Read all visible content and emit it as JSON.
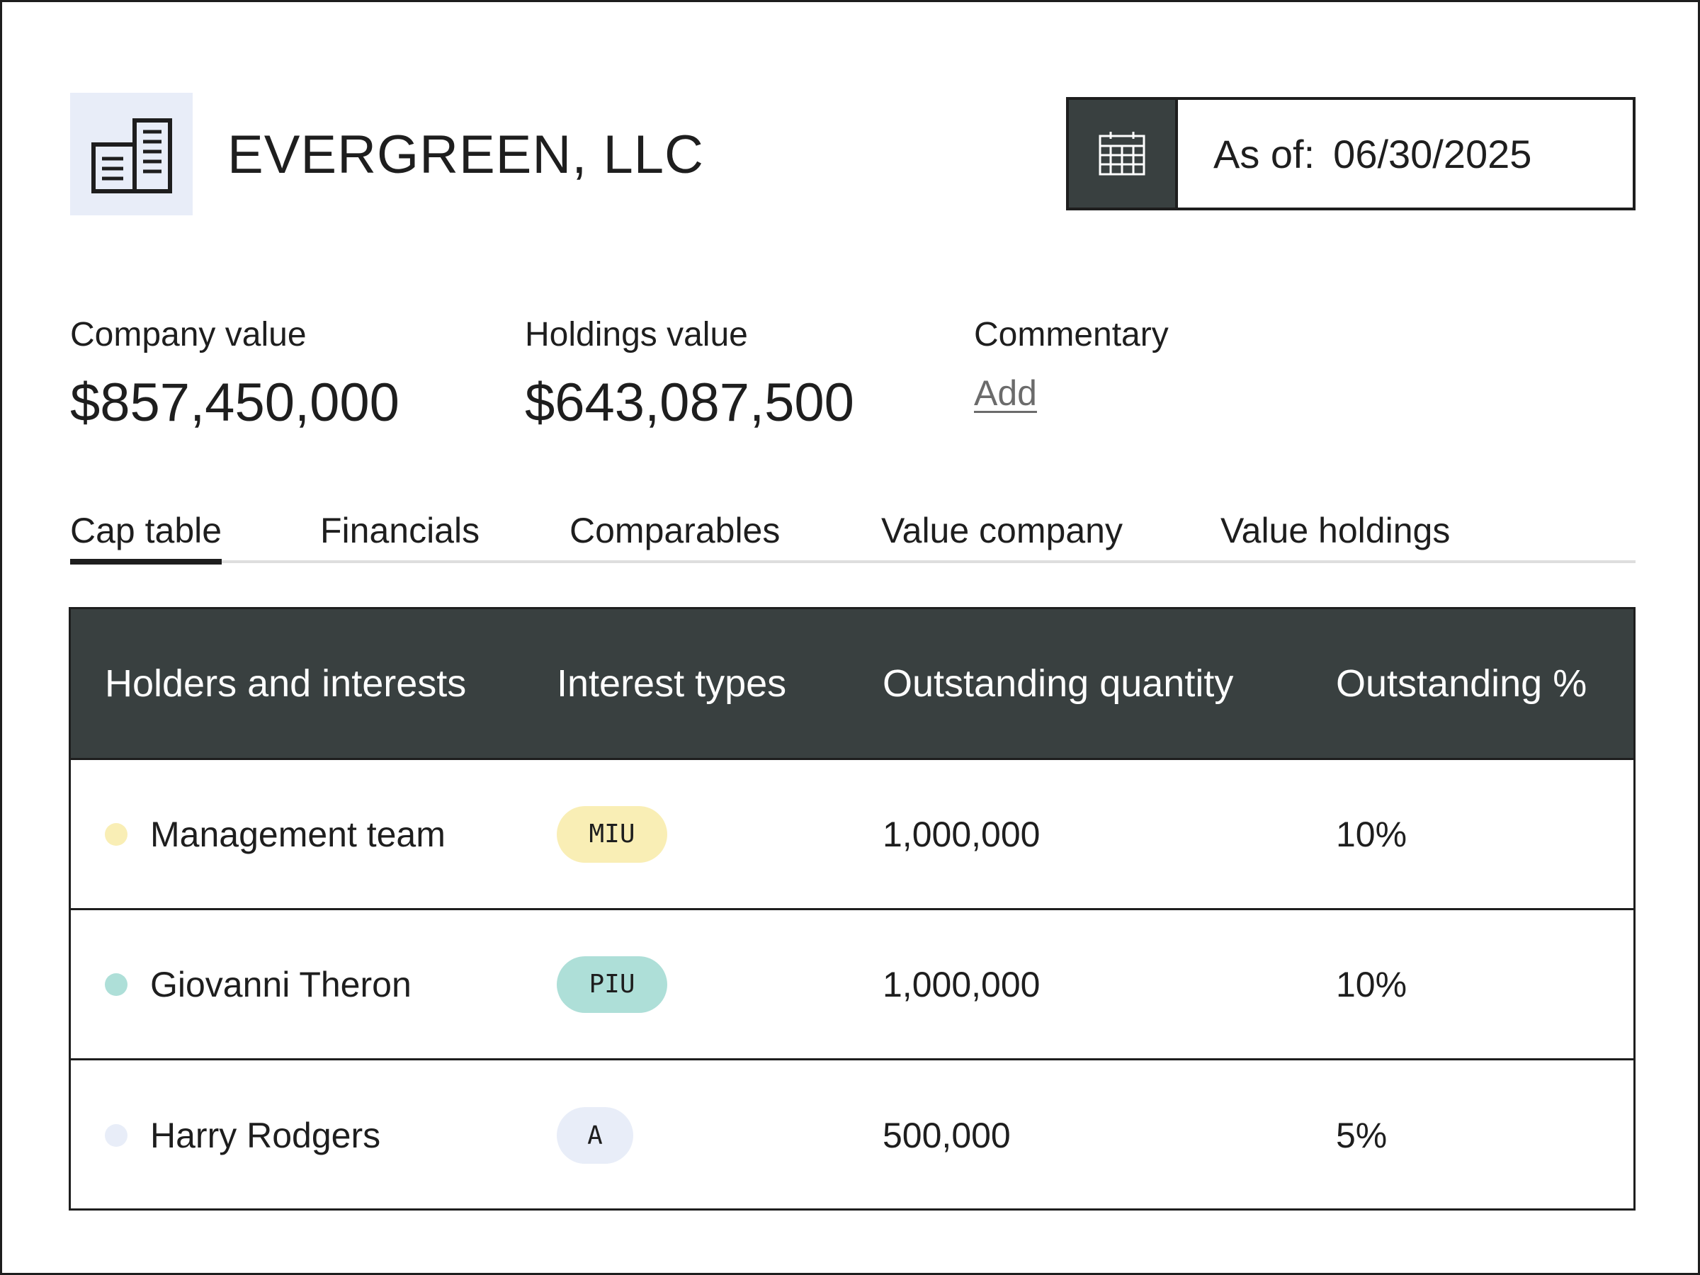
{
  "header": {
    "company_name": "EVERGREEN, LLC",
    "logo_icon": "building-icon",
    "date_label": "As of:",
    "date_value": "06/30/2025",
    "calendar_icon": "calendar-icon"
  },
  "metrics": {
    "company_value_label": "Company value",
    "company_value": "$857,450,000",
    "holdings_value_label": "Holdings value",
    "holdings_value": "$643,087,500",
    "commentary_label": "Commentary",
    "commentary_link": "Add"
  },
  "tabs": [
    {
      "label": "Cap table",
      "active": true
    },
    {
      "label": "Financials",
      "active": false
    },
    {
      "label": "Comparables",
      "active": false
    },
    {
      "label": "Value company",
      "active": false
    },
    {
      "label": "Value holdings",
      "active": false
    }
  ],
  "table": {
    "columns": [
      "Holders and interests",
      "Interest types",
      "Outstanding quantity",
      "Outstanding %"
    ],
    "rows": [
      {
        "holder": "Management team",
        "type": "MIU",
        "quantity": "1,000,000",
        "percent": "10%",
        "color": "#f9eeb5"
      },
      {
        "holder": "Giovanni Theron",
        "type": "PIU",
        "quantity": "1,000,000",
        "percent": "10%",
        "color": "#aedfd8"
      },
      {
        "holder": "Harry Rodgers",
        "type": "A",
        "quantity": "500,000",
        "percent": "5%",
        "color": "#e8edf8"
      }
    ]
  },
  "colors": {
    "dark": "#394040",
    "logo_bg": "#e8edf8"
  }
}
